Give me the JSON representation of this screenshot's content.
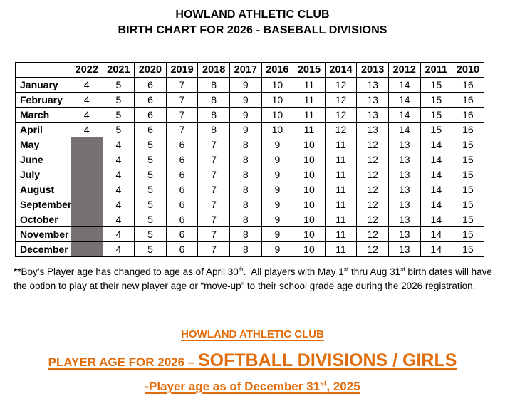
{
  "title": {
    "line1": "HOWLAND ATHLETIC CLUB",
    "line2": "BIRTH CHART FOR 2026 - BASEBALL DIVISIONS"
  },
  "chart_data": {
    "type": "table",
    "columns": [
      "",
      "2022",
      "2021",
      "2020",
      "2019",
      "2018",
      "2017",
      "2016",
      "2015",
      "2014",
      "2013",
      "2012",
      "2011",
      "2010"
    ],
    "rows": [
      {
        "month": "January",
        "values": [
          "4",
          "5",
          "6",
          "7",
          "8",
          "9",
          "10",
          "11",
          "12",
          "13",
          "14",
          "15",
          "16"
        ]
      },
      {
        "month": "February",
        "values": [
          "4",
          "5",
          "6",
          "7",
          "8",
          "9",
          "10",
          "11",
          "12",
          "13",
          "14",
          "15",
          "16"
        ]
      },
      {
        "month": "March",
        "values": [
          "4",
          "5",
          "6",
          "7",
          "8",
          "9",
          "10",
          "11",
          "12",
          "13",
          "14",
          "15",
          "16"
        ]
      },
      {
        "month": "April",
        "values": [
          "4",
          "5",
          "6",
          "7",
          "8",
          "9",
          "10",
          "11",
          "12",
          "13",
          "14",
          "15",
          "16"
        ]
      },
      {
        "month": "May",
        "values": [
          null,
          "4",
          "5",
          "6",
          "7",
          "8",
          "9",
          "10",
          "11",
          "12",
          "13",
          "14",
          "15"
        ]
      },
      {
        "month": "June",
        "values": [
          null,
          "4",
          "5",
          "6",
          "7",
          "8",
          "9",
          "10",
          "11",
          "12",
          "13",
          "14",
          "15"
        ]
      },
      {
        "month": "July",
        "values": [
          null,
          "4",
          "5",
          "6",
          "7",
          "8",
          "9",
          "10",
          "11",
          "12",
          "13",
          "14",
          "15"
        ]
      },
      {
        "month": "August",
        "values": [
          null,
          "4",
          "5",
          "6",
          "7",
          "8",
          "9",
          "10",
          "11",
          "12",
          "13",
          "14",
          "15"
        ]
      },
      {
        "month": "September",
        "values": [
          null,
          "4",
          "5",
          "6",
          "7",
          "8",
          "9",
          "10",
          "11",
          "12",
          "13",
          "14",
          "15"
        ]
      },
      {
        "month": "October",
        "values": [
          null,
          "4",
          "5",
          "6",
          "7",
          "8",
          "9",
          "10",
          "11",
          "12",
          "13",
          "14",
          "15"
        ]
      },
      {
        "month": "November",
        "values": [
          null,
          "4",
          "5",
          "6",
          "7",
          "8",
          "9",
          "10",
          "11",
          "12",
          "13",
          "14",
          "15"
        ]
      },
      {
        "month": "December",
        "values": [
          null,
          "4",
          "5",
          "6",
          "7",
          "8",
          "9",
          "10",
          "11",
          "12",
          "13",
          "14",
          "15"
        ]
      }
    ],
    "empty_cell_color": "#767171"
  },
  "footnote": {
    "segments": [
      {
        "text": "**",
        "bold": true
      },
      {
        "text": "Boy’s Player age has changed to age as of April 30"
      },
      {
        "text": "th",
        "sup": true
      },
      {
        "text": ".  All players with May 1"
      },
      {
        "text": "st",
        "sup": true
      },
      {
        "text": " thru Aug 31"
      },
      {
        "text": "st",
        "sup": true
      },
      {
        "text": " birth dates will have the option to play at their new player age or “move-up” to their school grade age during the 2026 registration."
      }
    ]
  },
  "bottom": {
    "accent_color": "#E36C0A",
    "line1": "HOWLAND ATHLETIC CLUB",
    "line2_prefix": "PLAYER AGE FOR 2026 – ",
    "line2_emphasis": "SOFTBALL DIVISIONS / GIRLS",
    "line3_segments": [
      {
        "text": "-Player age as of December 31"
      },
      {
        "text": "st",
        "sup": true
      },
      {
        "text": ", 2025"
      }
    ]
  }
}
